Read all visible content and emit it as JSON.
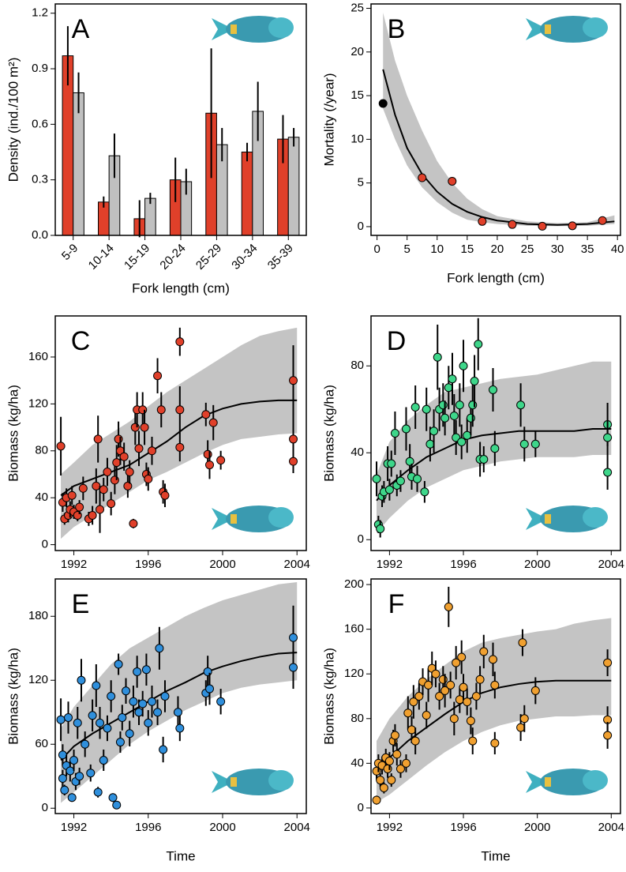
{
  "chart_data": [
    {
      "type": "bar",
      "label": "A",
      "xlabel": "Fork length (cm)",
      "ylabel": "Density (ind./100 m²)",
      "categories": [
        "5-9",
        "10-14",
        "15-19",
        "20-24",
        "25-29",
        "30-34",
        "35-39"
      ],
      "series": [
        {
          "color": "#e0402a",
          "values": [
            0.97,
            0.18,
            0.09,
            0.3,
            0.66,
            0.45,
            0.52
          ],
          "errors": [
            0.16,
            0.03,
            0.1,
            0.12,
            0.35,
            0.05,
            0.13
          ]
        },
        {
          "color": "#c0c0c0",
          "values": [
            0.77,
            0.43,
            0.2,
            0.29,
            0.49,
            0.67,
            0.53
          ],
          "errors": [
            0.11,
            0.12,
            0.03,
            0.07,
            0.09,
            0.16,
            0.05
          ]
        }
      ],
      "ylim": [
        0,
        1.25
      ],
      "yticks": [
        {
          "value": 0,
          "label": "0.0"
        },
        0.3,
        0.6,
        0.9,
        1.2
      ]
    },
    {
      "type": "curve",
      "label": "B",
      "xlabel": "Fork length (cm)",
      "ylabel": "Mortality (/year)",
      "x": [
        1,
        7.5,
        12.5,
        17.5,
        22.5,
        27.5,
        32.5,
        37.5
      ],
      "values": [
        14.1,
        5.6,
        5.2,
        0.6,
        0.25,
        0.05,
        0.1,
        0.7
      ],
      "colors": [
        "#000000",
        "#e0402a",
        "#e0402a",
        "#e0402a",
        "#e0402a",
        "#e0402a",
        "#e0402a",
        "#e0402a"
      ],
      "trend": {
        "x": [
          1,
          3,
          5,
          7.5,
          10,
          12.5,
          15,
          17.5,
          20,
          25,
          30,
          35,
          39.5
        ],
        "values": [
          18,
          12.8,
          9,
          6,
          4,
          2.6,
          1.7,
          1.1,
          0.7,
          0.3,
          0.2,
          0.3,
          0.6
        ]
      },
      "band_upper": [
        24.5,
        19,
        15,
        11,
        7.5,
        5,
        3.2,
        2,
        1.2,
        0.6,
        0.4,
        0.5,
        1.3
      ],
      "band_lower": [
        13.5,
        10,
        7,
        4.5,
        2.8,
        1.6,
        0.8,
        0.5,
        0.3,
        0.1,
        0.05,
        0.1,
        0.3
      ],
      "xlim": [
        -1,
        40.5
      ],
      "xticks": [
        0,
        5,
        10,
        15,
        20,
        25,
        30,
        35,
        40
      ],
      "ylim": [
        -1,
        25.5
      ],
      "yticks": [
        0,
        5,
        10,
        15,
        20,
        25
      ]
    },
    {
      "type": "scatter",
      "label": "C",
      "ylabel": "Biomass (kg/ha)",
      "color": "#e0402a",
      "x": [
        1991.3,
        1991.4,
        1991.5,
        1991.6,
        1991.7,
        1991.8,
        1991.9,
        1992.0,
        1992.2,
        1992.3,
        1992.5,
        1992.8,
        1993.0,
        1993.2,
        1993.3,
        1993.4,
        1993.6,
        1993.8,
        1994.0,
        1994.2,
        1994.3,
        1994.4,
        1994.5,
        1994.7,
        1994.9,
        1995.0,
        1995.2,
        1995.3,
        1995.4,
        1995.5,
        1995.7,
        1995.8,
        1995.9,
        1996.0,
        1996.2,
        1996.5,
        1996.7,
        1996.8,
        1996.9,
        1997.7,
        1997.7,
        1997.7,
        1999.1,
        1999.2,
        1999.3,
        1999.5,
        1999.9,
        2003.8,
        2003.8,
        2003.8
      ],
      "values": [
        84,
        36,
        22,
        40,
        25,
        30,
        42,
        28,
        25,
        32,
        48,
        22,
        25,
        50,
        90,
        30,
        47,
        62,
        35,
        55,
        70,
        90,
        80,
        75,
        50,
        62,
        18,
        100,
        115,
        82,
        115,
        100,
        60,
        56,
        80,
        144,
        115,
        45,
        42,
        173,
        115,
        83,
        111,
        77,
        68,
        104,
        72,
        140,
        90,
        71
      ],
      "errors": [
        25,
        8,
        5,
        8,
        6,
        7,
        8,
        6,
        5,
        6,
        10,
        6,
        8,
        15,
        20,
        20,
        10,
        12,
        10,
        12,
        15,
        15,
        12,
        12,
        10,
        10,
        4,
        15,
        15,
        15,
        15,
        15,
        10,
        10,
        12,
        15,
        15,
        10,
        10,
        12,
        20,
        12,
        10,
        12,
        12,
        15,
        8,
        30,
        25,
        10
      ],
      "trend": {
        "x": [
          1991.3,
          1992,
          1993,
          1994,
          1995,
          1996,
          1997,
          1998,
          1999,
          2000,
          2001,
          2002,
          2003,
          2004
        ],
        "values": [
          42,
          50,
          56,
          62,
          68,
          78,
          88,
          100,
          110,
          116,
          120,
          122,
          123,
          123
        ]
      },
      "band_lower": [
        5,
        15,
        25,
        35,
        45,
        55,
        62,
        70,
        78,
        85,
        90,
        92,
        94,
        95
      ],
      "band_upper": [
        60,
        70,
        85,
        95,
        105,
        118,
        130,
        140,
        150,
        160,
        170,
        178,
        182,
        185
      ],
      "xlim": [
        1991,
        2004.5
      ],
      "xticks": [
        1992,
        1996,
        2000,
        2004
      ],
      "ylim": [
        -5,
        195
      ],
      "yticks": [
        0,
        40,
        80,
        120,
        160
      ]
    },
    {
      "type": "scatter",
      "label": "D",
      "ylabel": "Biomass (kg/ha)",
      "color": "#3ed68a",
      "x": [
        1991.3,
        1991.4,
        1991.5,
        1991.6,
        1991.7,
        1991.9,
        1992.0,
        1992.1,
        1992.3,
        1992.4,
        1992.6,
        1992.9,
        1993.1,
        1993.2,
        1993.4,
        1993.5,
        1993.9,
        1994.0,
        1994.2,
        1994.4,
        1994.6,
        1994.7,
        1994.9,
        1995.0,
        1995.2,
        1995.4,
        1995.5,
        1995.6,
        1995.8,
        1995.9,
        1996.0,
        1996.2,
        1996.4,
        1996.5,
        1996.6,
        1996.8,
        1996.9,
        1997.1,
        1997.6,
        1997.7,
        1999.1,
        1999.3,
        1999.9,
        2003.8,
        2003.8,
        2003.8
      ],
      "values": [
        28,
        7,
        5,
        20,
        22,
        35,
        23,
        35,
        49,
        25,
        27,
        51,
        36,
        29,
        61,
        28,
        22,
        60,
        44,
        50,
        84,
        60,
        62,
        56,
        70,
        74,
        57,
        47,
        62,
        45,
        80,
        48,
        56,
        62,
        73,
        90,
        37,
        37,
        69,
        42,
        62,
        44,
        44,
        53,
        47,
        31
      ],
      "errors": [
        8,
        4,
        4,
        5,
        5,
        8,
        5,
        6,
        10,
        5,
        5,
        10,
        8,
        6,
        10,
        6,
        5,
        10,
        8,
        10,
        15,
        10,
        10,
        8,
        10,
        12,
        10,
        8,
        10,
        8,
        12,
        8,
        8,
        10,
        12,
        12,
        8,
        6,
        10,
        8,
        10,
        8,
        6,
        10,
        8,
        8
      ],
      "trend": {
        "x": [
          1991.3,
          1992,
          1993,
          1994,
          1995,
          1996,
          1997,
          1998,
          1999,
          2000,
          2001,
          2002,
          2003,
          2004
        ],
        "values": [
          18,
          25,
          32,
          38,
          42,
          46,
          48,
          49,
          50,
          50,
          50,
          50,
          51,
          51
        ]
      },
      "band_lower": [
        3,
        10,
        18,
        24,
        28,
        32,
        34,
        36,
        37,
        38,
        38,
        38,
        39,
        39
      ],
      "band_upper": [
        30,
        45,
        55,
        62,
        68,
        70,
        72,
        74,
        75,
        76,
        78,
        80,
        82,
        82
      ],
      "xlim": [
        1991,
        2004.5
      ],
      "xticks": [
        1992,
        1996,
        2000,
        2004
      ],
      "ylim": [
        -5,
        103
      ],
      "yticks": [
        0,
        40,
        80
      ]
    },
    {
      "type": "scatter",
      "label": "E",
      "xlabel": "Time",
      "ylabel": "Biomass (kg/ha)",
      "color": "#2f8fdc",
      "x": [
        1991.3,
        1991.4,
        1991.4,
        1991.5,
        1991.6,
        1991.7,
        1991.8,
        1991.9,
        1992.0,
        1992.1,
        1992.2,
        1992.3,
        1992.4,
        1992.6,
        1992.9,
        1993.0,
        1993.2,
        1993.3,
        1993.4,
        1993.6,
        1993.8,
        1994.0,
        1994.1,
        1994.3,
        1994.4,
        1994.5,
        1994.6,
        1994.8,
        1995.0,
        1995.2,
        1995.4,
        1995.5,
        1995.7,
        1995.9,
        1996.0,
        1996.2,
        1996.5,
        1996.6,
        1996.8,
        1996.9,
        1997.6,
        1997.7,
        1999.1,
        1999.2,
        1999.3,
        1999.9,
        2003.8,
        2003.8
      ],
      "values": [
        83,
        50,
        28,
        17,
        40,
        85,
        35,
        10,
        45,
        25,
        80,
        30,
        120,
        60,
        33,
        87,
        115,
        15,
        80,
        45,
        75,
        105,
        10,
        3,
        135,
        62,
        85,
        110,
        70,
        100,
        128,
        90,
        98,
        130,
        80,
        100,
        90,
        150,
        55,
        105,
        90,
        75,
        108,
        128,
        112,
        100,
        160,
        132
      ],
      "errors": [
        20,
        10,
        8,
        5,
        10,
        15,
        10,
        4,
        10,
        8,
        15,
        8,
        20,
        12,
        8,
        15,
        20,
        5,
        15,
        10,
        12,
        15,
        4,
        3,
        10,
        10,
        12,
        12,
        12,
        15,
        15,
        12,
        12,
        15,
        12,
        15,
        12,
        20,
        12,
        15,
        15,
        12,
        12,
        15,
        15,
        12,
        30,
        20
      ],
      "trend": {
        "x": [
          1991.3,
          1992,
          1993,
          1994,
          1995,
          1996,
          1997,
          1998,
          1999,
          2000,
          2001,
          2002,
          2003,
          2004
        ],
        "values": [
          45,
          58,
          70,
          80,
          90,
          100,
          110,
          118,
          127,
          133,
          138,
          142,
          145,
          146
        ]
      },
      "band_lower": [
        5,
        15,
        30,
        45,
        60,
        72,
        82,
        92,
        100,
        108,
        113,
        116,
        118,
        120
      ],
      "band_upper": [
        75,
        95,
        115,
        135,
        150,
        160,
        170,
        180,
        188,
        195,
        200,
        205,
        210,
        212
      ],
      "xlim": [
        1991,
        2004.5
      ],
      "xticks": [
        1992,
        1996,
        2000,
        2004
      ],
      "ylim": [
        -5,
        215
      ],
      "yticks": [
        0,
        60,
        120,
        180
      ]
    },
    {
      "type": "scatter",
      "label": "F",
      "xlabel": "Time",
      "ylabel": "Biomass (kg/ha)",
      "color": "#f0a030",
      "x": [
        1991.3,
        1991.3,
        1991.4,
        1991.5,
        1991.6,
        1991.7,
        1991.8,
        1991.9,
        1992.0,
        1992.1,
        1992.2,
        1992.3,
        1992.4,
        1992.6,
        1992.9,
        1993.0,
        1993.2,
        1993.3,
        1993.4,
        1993.6,
        1993.8,
        1994.0,
        1994.1,
        1994.3,
        1994.5,
        1994.7,
        1994.9,
        1995.0,
        1995.2,
        1995.3,
        1995.5,
        1995.6,
        1995.8,
        1995.9,
        1996.0,
        1996.2,
        1996.4,
        1996.5,
        1996.7,
        1996.9,
        1997.1,
        1997.6,
        1997.7,
        1997.7,
        1999.1,
        1999.2,
        1999.3,
        1999.9,
        2003.8,
        2003.8,
        2003.8
      ],
      "values": [
        7,
        33,
        40,
        25,
        38,
        18,
        45,
        35,
        42,
        25,
        60,
        65,
        48,
        35,
        40,
        85,
        70,
        95,
        60,
        100,
        113,
        83,
        110,
        125,
        120,
        100,
        115,
        105,
        180,
        110,
        80,
        130,
        97,
        135,
        108,
        95,
        78,
        60,
        100,
        115,
        140,
        133,
        110,
        58,
        72,
        148,
        80,
        105,
        130,
        79,
        65
      ],
      "errors": [
        4,
        8,
        8,
        6,
        8,
        5,
        8,
        8,
        8,
        6,
        10,
        10,
        10,
        8,
        8,
        15,
        12,
        15,
        12,
        12,
        12,
        12,
        15,
        15,
        12,
        12,
        12,
        15,
        18,
        12,
        15,
        15,
        12,
        15,
        12,
        12,
        12,
        12,
        12,
        12,
        15,
        15,
        12,
        10,
        12,
        12,
        12,
        12,
        12,
        12,
        12
      ],
      "trend": {
        "x": [
          1991.3,
          1992,
          1993,
          1994,
          1995,
          1996,
          1997,
          1998,
          1999,
          2000,
          2001,
          2002,
          2003,
          2004
        ],
        "values": [
          32,
          45,
          60,
          72,
          84,
          95,
          103,
          108,
          111,
          113,
          114,
          114,
          114,
          114
        ]
      },
      "band_lower": [
        5,
        12,
        25,
        38,
        50,
        60,
        68,
        74,
        78,
        80,
        82,
        82,
        83,
        83
      ],
      "band_upper": [
        60,
        80,
        100,
        115,
        128,
        140,
        148,
        152,
        155,
        158,
        160,
        165,
        168,
        170
      ],
      "xlim": [
        1991,
        2004.5
      ],
      "xticks": [
        1992,
        1996,
        2000,
        2004
      ],
      "ylim": [
        -5,
        205
      ],
      "yticks": [
        0,
        40,
        80,
        120,
        160,
        200
      ]
    }
  ]
}
